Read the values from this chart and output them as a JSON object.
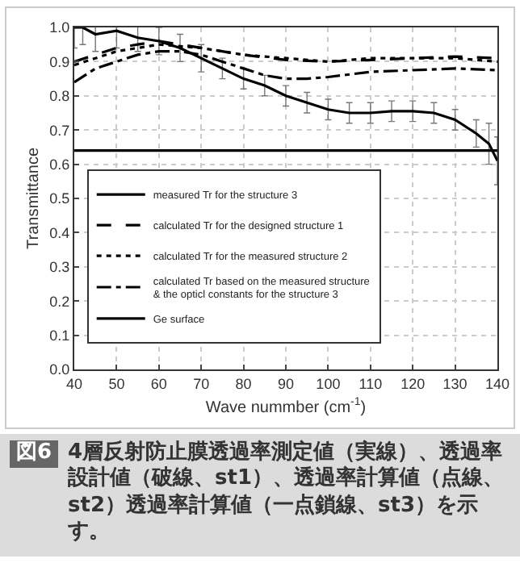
{
  "chart_data": {
    "type": "line",
    "xlabel": "Wave nummber (cm$^{-1}$)",
    "ylabel": "Transmittance",
    "xlim": [
      40,
      140
    ],
    "xticks": [
      40,
      50,
      60,
      70,
      80,
      90,
      100,
      110,
      120,
      130,
      140
    ],
    "ylim": [
      0,
      1
    ],
    "yticks": [
      {
        "value": 0,
        "label": "0.0"
      },
      {
        "value": 0.1,
        "label": "0.1"
      },
      {
        "value": 0.2,
        "label": "0.2"
      },
      {
        "value": 0.3,
        "label": "0.3"
      },
      {
        "value": 0.4,
        "label": "0.4"
      },
      {
        "value": 0.5,
        "label": "0.5"
      },
      {
        "value": 0.6,
        "label": "0.6"
      },
      {
        "value": 0.7,
        "label": "0.7"
      },
      {
        "value": 0.8,
        "label": "0.8"
      },
      {
        "value": 0.9,
        "label": "0.9"
      },
      {
        "value": 1,
        "label": "1.0"
      }
    ],
    "grid": true,
    "legend": "center left",
    "marker": "none",
    "series": [
      {
        "name": "measured Tr for the structure 3",
        "color": "#000000",
        "line_style": "solid",
        "x": [
          40,
          42,
          45,
          50,
          55,
          60,
          65,
          70,
          75,
          80,
          85,
          90,
          95,
          100,
          105,
          110,
          115,
          120,
          125,
          130,
          135,
          138,
          140
        ],
        "values": [
          1.0,
          1.0,
          0.98,
          0.99,
          0.97,
          0.96,
          0.94,
          0.91,
          0.88,
          0.85,
          0.83,
          0.8,
          0.78,
          0.76,
          0.75,
          0.75,
          0.755,
          0.755,
          0.75,
          0.73,
          0.69,
          0.66,
          0.61
        ],
        "errors": [
          0.06,
          0.05,
          0.05,
          0.05,
          0.04,
          0.04,
          0.04,
          0.04,
          0.03,
          0.03,
          0.03,
          0.03,
          0.03,
          0.03,
          0.03,
          0.03,
          0.03,
          0.03,
          0.03,
          0.03,
          0.04,
          0.06,
          0.07
        ]
      },
      {
        "name": "calculated Tr for the designed structure 1",
        "color": "#000000",
        "line_style": "dashed",
        "x": [
          40,
          45,
          50,
          55,
          60,
          65,
          70,
          80,
          90,
          100,
          110,
          120,
          130,
          140
        ],
        "values": [
          0.9,
          0.92,
          0.94,
          0.95,
          0.96,
          0.95,
          0.94,
          0.92,
          0.905,
          0.9,
          0.905,
          0.91,
          0.915,
          0.91
        ]
      },
      {
        "name": "calculated Tr for the measured structure 2",
        "color": "#000000",
        "line_style": "dotted",
        "x": [
          40,
          50,
          60,
          70,
          80,
          90,
          100,
          110,
          120,
          130,
          140
        ],
        "values": [
          0.89,
          0.93,
          0.95,
          0.94,
          0.92,
          0.91,
          0.9,
          0.91,
          0.91,
          0.91,
          0.9
        ]
      },
      {
        "name": "calculated Tr based on the measured structure\n& the opticl constants for the structure 3",
        "color": "#000000",
        "line_style": "dashdot",
        "x": [
          40,
          45,
          50,
          55,
          60,
          65,
          70,
          75,
          80,
          85,
          90,
          95,
          100,
          110,
          120,
          130,
          140
        ],
        "values": [
          0.84,
          0.88,
          0.9,
          0.92,
          0.93,
          0.93,
          0.92,
          0.9,
          0.88,
          0.86,
          0.85,
          0.85,
          0.855,
          0.87,
          0.875,
          0.88,
          0.875
        ]
      },
      {
        "name": "Ge surface",
        "color": "#000000",
        "line_style": "solid",
        "x": [
          40,
          140
        ],
        "values": [
          0.64,
          0.64
        ]
      }
    ],
    "annotations": [
      "図6",
      "4層反射防止膜透過率測定値（実線）、透過率設計値（破線、st1）、透過率計算値（点線、st2）透過率計算値（一点鎖線、st3）を示す。"
    ]
  }
}
